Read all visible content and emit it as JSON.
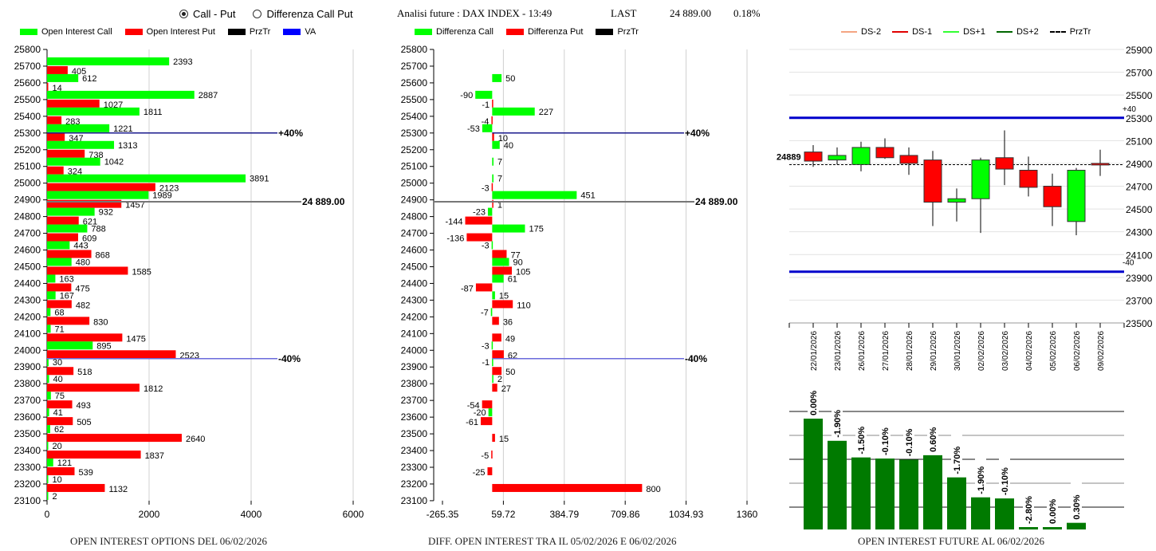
{
  "header": {
    "mode_options": [
      {
        "label": "Call - Put",
        "selected": true
      },
      {
        "label": "Differenza Call Put",
        "selected": false
      }
    ],
    "title": "Analisi future : DAX INDEX - 13:49",
    "last_label": "LAST",
    "last_value": "24 889.00",
    "change": "0.18%"
  },
  "colors": {
    "call": "#00ff00",
    "put": "#ff0000",
    "przTr": "#000000",
    "va": "#0000ff",
    "future_bar": "#007a00"
  },
  "chart_data": [
    {
      "type": "bar",
      "orientation": "horizontal",
      "id": "open-interest",
      "title": "OPEN INTEREST OPTIONS DEL 06/02/2026",
      "legend": [
        "Open Interest Call",
        "Open Interest Put",
        "PrzTr",
        "VA"
      ],
      "legend_position": "top",
      "categories": [
        25800,
        25700,
        25600,
        25500,
        25400,
        25300,
        25200,
        25100,
        25000,
        24900,
        24800,
        24700,
        24600,
        24500,
        24400,
        24300,
        24200,
        24100,
        24000,
        23900,
        23800,
        23700,
        23600,
        23500,
        23400,
        23300,
        23200,
        23100
      ],
      "series": [
        {
          "name": "Open Interest Call",
          "values": [
            null,
            2393,
            612,
            2887,
            1811,
            1221,
            1313,
            1042,
            3891,
            1989,
            932,
            788,
            443,
            480,
            163,
            167,
            68,
            71,
            895,
            30,
            40,
            75,
            41,
            62,
            20,
            121,
            10,
            2
          ]
        },
        {
          "name": "Open Interest Put",
          "values": [
            null,
            405,
            14,
            1027,
            283,
            347,
            738,
            324,
            2123,
            1457,
            621,
            609,
            868,
            1585,
            475,
            482,
            830,
            1475,
            2523,
            518,
            1812,
            493,
            505,
            2640,
            1837,
            539,
            1132,
            null
          ]
        }
      ],
      "xlim": [
        0,
        6000
      ],
      "xticks": [
        "0",
        "2000",
        "4000",
        "6000"
      ],
      "grid": true,
      "annotations": [
        {
          "label": "+40%",
          "strike": 25300
        },
        {
          "label": "24 889.00",
          "strike": 24889
        },
        {
          "label": "-40%",
          "strike": 23950
        }
      ]
    },
    {
      "type": "bar",
      "orientation": "horizontal",
      "id": "diff-open-interest",
      "title": "DIFF. OPEN INTEREST TRA IL 05/02/2026 E 06/02/2026",
      "legend": [
        "Differenza Call",
        "Differenza Put",
        "PrzTr"
      ],
      "legend_position": "top",
      "categories": [
        25800,
        25700,
        25600,
        25500,
        25400,
        25300,
        25200,
        25100,
        25000,
        24900,
        24800,
        24700,
        24600,
        24500,
        24400,
        24300,
        24200,
        24100,
        24000,
        23900,
        23800,
        23700,
        23600,
        23500,
        23400,
        23300,
        23200,
        23100
      ],
      "series": [
        {
          "name": "Differenza Call",
          "values": [
            null,
            null,
            50,
            -90,
            227,
            -53,
            40,
            7,
            7,
            451,
            -23,
            175,
            -3,
            90,
            61,
            15,
            -7,
            null,
            -3,
            -1,
            2,
            null,
            -20,
            null,
            null,
            null,
            null,
            null
          ]
        },
        {
          "name": "Differenza Put",
          "values": [
            null,
            null,
            null,
            -1,
            -4,
            10,
            null,
            null,
            -3,
            1,
            -144,
            -136,
            77,
            105,
            -87,
            110,
            36,
            49,
            62,
            50,
            27,
            -54,
            -61,
            15,
            -5,
            -25,
            800,
            null
          ]
        }
      ],
      "xlim": [
        -265.35,
        1360
      ],
      "xticks": [
        "-265.35",
        "59.72",
        "384.79",
        "709.86",
        "1034.93",
        "1360"
      ],
      "grid": true,
      "annotations": [
        {
          "label": "+40%",
          "strike": 25300
        },
        {
          "label": "24 889.00",
          "strike": 24889
        },
        {
          "label": "-40%",
          "strike": 23950
        }
      ]
    },
    {
      "type": "candlestick",
      "id": "price-history",
      "legend": [
        "DS-2",
        "DS-1",
        "DS+1",
        "DS+2",
        "PrzTr"
      ],
      "legend_position": "top",
      "categories": [
        "22/01/2026",
        "23/01/2026",
        "26/01/2026",
        "27/01/2026",
        "28/01/2026",
        "29/01/2026",
        "30/01/2026",
        "02/02/2026",
        "03/02/2026",
        "04/02/2026",
        "05/02/2026",
        "06/02/2026",
        "09/02/2026"
      ],
      "ohlc": [
        {
          "open": 25000,
          "high": 25060,
          "low": 24870,
          "close": 24920
        },
        {
          "open": 24930,
          "high": 25040,
          "low": 24890,
          "close": 24970
        },
        {
          "open": 24890,
          "high": 25090,
          "low": 24830,
          "close": 25040
        },
        {
          "open": 25040,
          "high": 25120,
          "low": 24940,
          "close": 24950
        },
        {
          "open": 24970,
          "high": 25040,
          "low": 24800,
          "close": 24900
        },
        {
          "open": 24930,
          "high": 25010,
          "low": 24350,
          "close": 24560
        },
        {
          "open": 24560,
          "high": 24680,
          "low": 24390,
          "close": 24590
        },
        {
          "open": 24590,
          "high": 24950,
          "low": 24290,
          "close": 24930
        },
        {
          "open": 24950,
          "high": 25190,
          "low": 24710,
          "close": 24850
        },
        {
          "open": 24840,
          "high": 24960,
          "low": 24610,
          "close": 24690
        },
        {
          "open": 24700,
          "high": 24810,
          "low": 24350,
          "close": 24520
        },
        {
          "open": 24390,
          "high": 24860,
          "low": 24270,
          "close": 24840
        },
        {
          "open": 24900,
          "high": 25020,
          "low": 24790,
          "close": 24890
        }
      ],
      "ylim": [
        23500,
        25900
      ],
      "yticks": [
        "25900",
        "25700",
        "25500",
        "25300",
        "25100",
        "24900",
        "24700",
        "24500",
        "24300",
        "24100",
        "23900",
        "23700",
        "23500"
      ],
      "reference_lines": [
        {
          "label": "+40",
          "value": 25300
        },
        {
          "label": "-40",
          "value": 23950
        }
      ],
      "przTr": {
        "label": "24889",
        "value": 24889
      },
      "grid": true
    },
    {
      "type": "bar",
      "id": "open-interest-future",
      "title": "OPEN INTEREST FUTURE AL 06/02/2026",
      "categories": [
        "22/01/2026",
        "23/01/2026",
        "26/01/2026",
        "27/01/2026",
        "28/01/2026",
        "29/01/2026",
        "30/01/2026",
        "02/02/2026",
        "03/02/2026",
        "04/02/2026",
        "05/02/2026",
        "06/02/2026"
      ],
      "data_labels": [
        "0.00%",
        "-1.90%",
        "-1.50%",
        "-0.10%",
        "-0.10%",
        "0.60%",
        "-1.70%",
        "-1.90%",
        "-0.10%",
        "-2.80%",
        "0.00%",
        "0.30%"
      ],
      "values": [
        1.0,
        0.8,
        0.65,
        0.64,
        0.63,
        0.67,
        0.47,
        0.29,
        0.28,
        0.02,
        0.02,
        0.06
      ],
      "value_units": "relative height (fraction of tallest bar)",
      "grid": true
    }
  ]
}
